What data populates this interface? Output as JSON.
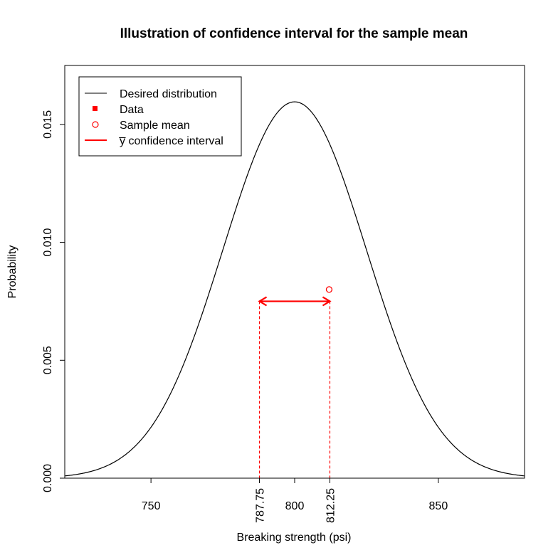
{
  "chart_data": {
    "type": "line",
    "title": "Illustration of confidence interval for the sample mean",
    "xlabel": "Breaking strength (psi)",
    "ylabel": "Probability",
    "xlim": [
      720,
      880
    ],
    "ylim": [
      0,
      0.0175
    ],
    "x_ticks": [
      "750",
      "800",
      "850"
    ],
    "x_ticks_extra": [
      "787.75",
      "812.25"
    ],
    "y_ticks": [
      "0.000",
      "0.005",
      "0.010",
      "0.015"
    ],
    "series": [
      {
        "name": "Desired distribution",
        "kind": "normal-density",
        "mean": 800,
        "sd": 25,
        "color": "#000000"
      }
    ],
    "sample_mean": {
      "x": 812,
      "y": 0.008,
      "color": "#ff0000"
    },
    "confidence_interval": {
      "lower": 787.75,
      "upper": 812.25,
      "y": 0.0075,
      "color": "#ff0000"
    },
    "legend": {
      "position": "top-left",
      "entries": [
        {
          "label": "Desired distribution",
          "symbol": "line",
          "color": "#000000"
        },
        {
          "label": "Data",
          "symbol": "filled-square",
          "color": "#ff0000"
        },
        {
          "label": "Sample mean",
          "symbol": "open-circle",
          "color": "#ff0000"
        },
        {
          "label": "y̅ confidence interval",
          "symbol": "line",
          "color": "#ff0000"
        }
      ]
    },
    "grid": false
  }
}
